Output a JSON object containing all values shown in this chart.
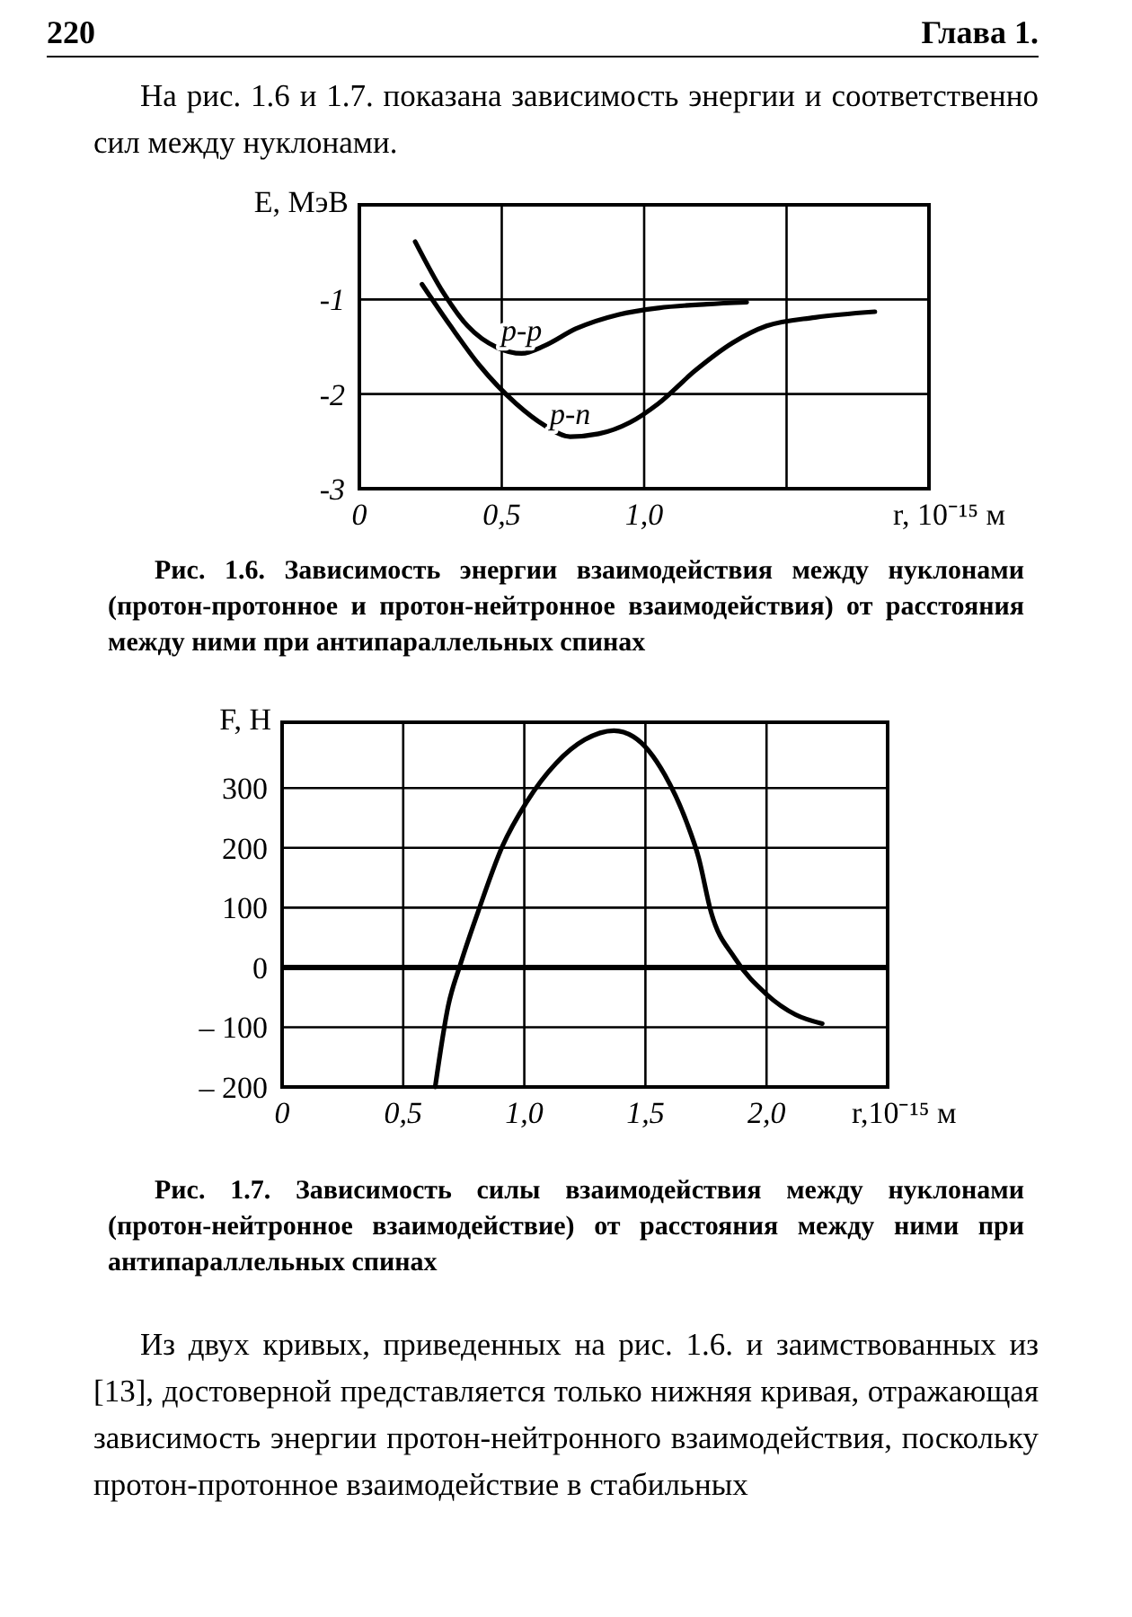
{
  "chart_data": [
    {
      "type": "line",
      "title": "Рис. 1.6. Зависимость энергии взаимодействия между нуклонами (протон-протонное и протон-нейтронное взаимодействия) от расстояния между ними при антипараллельных спинах",
      "xlabel": "r, 10⁻¹⁵ м",
      "ylabel": "E, МэВ",
      "annotations": [
        "220",
        "Глава 1.",
        "На рис. 1.6 и 1.7. показана зависимость энергии и соответственно сил между нуклонами."
      ],
      "xlim": [
        0,
        2.0
      ],
      "ylim": [
        -3,
        0
      ],
      "xticks": [
        0,
        {
          "value": 0.5,
          "label": "0,5"
        },
        {
          "value": 1.0,
          "label": "1,0"
        },
        {
          "value": 1.5,
          "label": null
        }
      ],
      "yticks": [
        -3,
        -2,
        -1
      ],
      "grid": true,
      "marker": "none",
      "line_style": "solid",
      "series": [
        {
          "name": "p-p",
          "color": "#000000",
          "x": [
            0.196,
            0.295,
            0.38,
            0.485,
            0.57,
            0.65,
            0.76,
            0.91,
            1.05,
            1.22,
            1.36
          ],
          "values": [
            -0.39,
            -0.93,
            -1.28,
            -1.51,
            -1.57,
            -1.49,
            -1.31,
            -1.16,
            -1.09,
            -1.05,
            -1.03
          ]
        },
        {
          "name": "p-n",
          "color": "#000000",
          "x": [
            0.22,
            0.32,
            0.42,
            0.55,
            0.65,
            0.74,
            0.84,
            0.95,
            1.05,
            1.18,
            1.31,
            1.43,
            1.6,
            1.81
          ],
          "values": [
            -0.84,
            -1.28,
            -1.69,
            -2.1,
            -2.33,
            -2.45,
            -2.42,
            -2.3,
            -2.1,
            -1.75,
            -1.46,
            -1.28,
            -1.19,
            -1.13
          ]
        }
      ]
    },
    {
      "type": "line",
      "title": "Рис. 1.7. Зависимость силы взаимодействия между нуклонами (протон-нейтронное взаимодействие) от расстояния между ними при антипараллельных спинах",
      "xlabel": "r,10⁻¹⁵ м",
      "ylabel": "F, Н",
      "annotations": [
        "Из двух кривых, приведенных на рис. 1.6. и заимствованных из [13], достоверной представляется только нижняя кривая, отражающая зависимость энергии протон-нейтронного взаимодействия, поскольку протон-протонное взаимодействие в стабильных"
      ],
      "xlim": [
        0,
        2.5
      ],
      "ylim": [
        -200,
        410
      ],
      "xticks": [
        0,
        {
          "value": 0.5,
          "label": "0,5"
        },
        {
          "value": 1.0,
          "label": "1,0"
        },
        {
          "value": 1.5,
          "label": "1,5"
        },
        {
          "value": 2.0,
          "label": "2,0"
        }
      ],
      "yticks": [
        300,
        200,
        100,
        0,
        {
          "value": -100,
          "label": "– 100"
        },
        {
          "value": -200,
          "label": "– 200"
        }
      ],
      "grid": true,
      "marker": "none",
      "line_style": "solid",
      "ref_lines": [
        {
          "axis": "y",
          "value": 0,
          "label": null
        }
      ],
      "series": [
        {
          "color": "#000000",
          "x": [
            0.632,
            0.686,
            0.736,
            0.81,
            0.91,
            1.01,
            1.13,
            1.25,
            1.37,
            1.45,
            1.58,
            1.67,
            1.72,
            1.77,
            1.87,
            2.0,
            2.12,
            2.23
          ],
          "values": [
            -200,
            -64,
            5,
            94,
            203,
            277,
            341,
            381,
            396,
            386,
            322,
            243,
            183,
            94,
            15,
            -45,
            -79,
            -94
          ]
        }
      ]
    }
  ]
}
